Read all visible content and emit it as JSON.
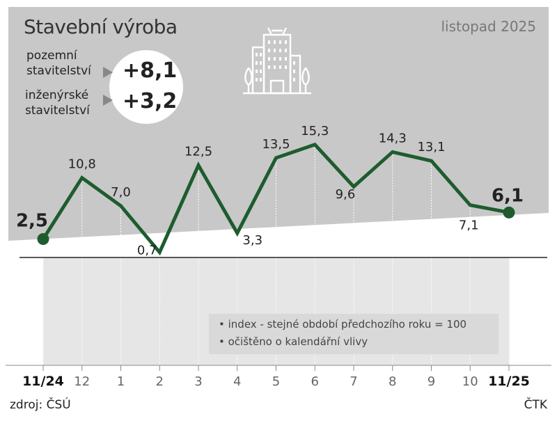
{
  "title": "Stavební výroba",
  "period": "listopad 2025",
  "highlights": [
    {
      "label_line1": "pozemní",
      "label_line2": "stavitelství",
      "value": "+8,1"
    },
    {
      "label_line1": "inženýrské",
      "label_line2": "stavitelství",
      "value": "+3,2"
    }
  ],
  "legend": {
    "line1": "index - stejné období předchozího roku = 100",
    "line2": "očištěno o kalendářní vlivy"
  },
  "source": "zdroj: ČSÚ",
  "agency": "ČTK",
  "colors": {
    "line": "#1e5c2e",
    "grey_band": "#c8c8c8",
    "lower_band": "#e6e6e6"
  },
  "icon": "building-icon",
  "chart_data": {
    "type": "line",
    "categories": [
      "11/24",
      "12",
      "1",
      "2",
      "3",
      "4",
      "5",
      "6",
      "7",
      "8",
      "9",
      "10",
      "11/25"
    ],
    "values": [
      2.5,
      10.8,
      7.0,
      0.7,
      12.5,
      3.3,
      13.5,
      15.3,
      9.6,
      14.3,
      13.1,
      7.1,
      6.1
    ],
    "labels": [
      "2,5",
      "10,8",
      "7,0",
      "0,7",
      "12,5",
      "3,3",
      "13,5",
      "15,3",
      "9,6",
      "14,3",
      "13,1",
      "7,1",
      "6,1"
    ],
    "baseline": 0,
    "ylim": [
      -14,
      20
    ],
    "grid": false
  }
}
